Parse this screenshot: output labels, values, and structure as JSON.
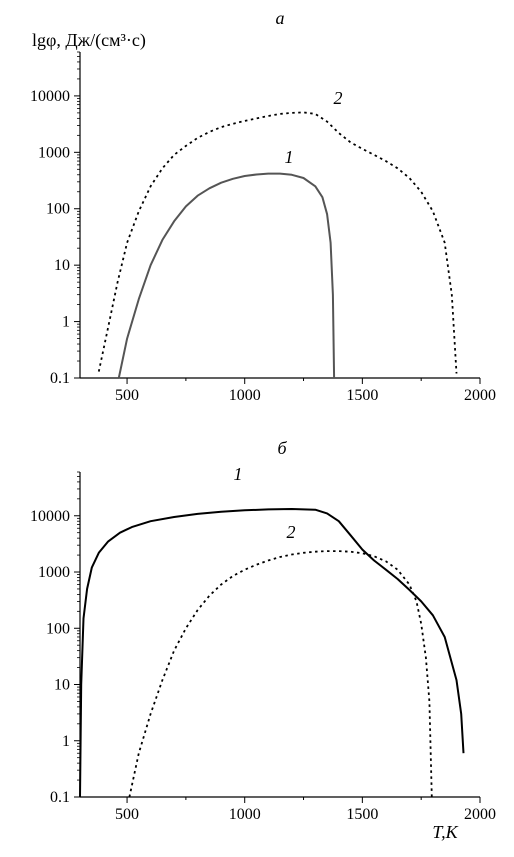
{
  "chart_data": [
    {
      "type": "line",
      "panel_label": "а",
      "ylabel": "lgφ, Дж/(см³·с)",
      "xlabel": "",
      "xlim": [
        300,
        2000
      ],
      "ylim": [
        0.1,
        60000
      ],
      "y_scale": "log",
      "x_ticks": [
        500,
        1000,
        1500,
        2000
      ],
      "y_ticks": [
        0.1,
        1,
        10,
        100,
        1000,
        10000
      ],
      "y_tick_labels": [
        "0.1",
        "1",
        "10",
        "100",
        "1000",
        "10000"
      ],
      "grid": false,
      "series": [
        {
          "name": "1",
          "style": "solid",
          "color": "#555555",
          "points": [
            [
              465,
              0.1
            ],
            [
              500,
              0.5
            ],
            [
              550,
              2.5
            ],
            [
              600,
              10
            ],
            [
              650,
              28
            ],
            [
              700,
              60
            ],
            [
              750,
              110
            ],
            [
              800,
              170
            ],
            [
              850,
              230
            ],
            [
              900,
              290
            ],
            [
              950,
              340
            ],
            [
              1000,
              380
            ],
            [
              1050,
              405
            ],
            [
              1100,
              420
            ],
            [
              1150,
              420
            ],
            [
              1200,
              400
            ],
            [
              1250,
              350
            ],
            [
              1300,
              250
            ],
            [
              1330,
              160
            ],
            [
              1350,
              80
            ],
            [
              1365,
              25
            ],
            [
              1375,
              3
            ],
            [
              1380,
              0.1
            ]
          ]
        },
        {
          "name": "2",
          "style": "dotted",
          "color": "#000000",
          "points": [
            [
              380,
              0.13
            ],
            [
              420,
              0.8
            ],
            [
              460,
              5
            ],
            [
              500,
              25
            ],
            [
              550,
              90
            ],
            [
              600,
              250
            ],
            [
              650,
              520
            ],
            [
              700,
              900
            ],
            [
              750,
              1300
            ],
            [
              800,
              1800
            ],
            [
              850,
              2300
            ],
            [
              900,
              2800
            ],
            [
              950,
              3200
            ],
            [
              1000,
              3600
            ],
            [
              1050,
              4000
            ],
            [
              1100,
              4400
            ],
            [
              1150,
              4800
            ],
            [
              1200,
              5000
            ],
            [
              1250,
              5100
            ],
            [
              1300,
              4800
            ],
            [
              1350,
              3500
            ],
            [
              1400,
              2200
            ],
            [
              1450,
              1500
            ],
            [
              1500,
              1150
            ],
            [
              1550,
              900
            ],
            [
              1600,
              700
            ],
            [
              1650,
              520
            ],
            [
              1700,
              350
            ],
            [
              1750,
              200
            ],
            [
              1800,
              90
            ],
            [
              1850,
              25
            ],
            [
              1880,
              3
            ],
            [
              1900,
              0.12
            ]
          ]
        }
      ]
    },
    {
      "type": "line",
      "panel_label": "б",
      "ylabel": "",
      "xlabel": "T,K",
      "xlim": [
        300,
        2000
      ],
      "ylim": [
        0.1,
        60000
      ],
      "y_scale": "log",
      "x_ticks": [
        500,
        1000,
        1500,
        2000
      ],
      "y_ticks": [
        0.1,
        1,
        10,
        100,
        1000,
        10000
      ],
      "y_tick_labels": [
        "0.1",
        "1",
        "10",
        "100",
        "1000",
        "10000"
      ],
      "grid": false,
      "series": [
        {
          "name": "1",
          "style": "solid",
          "color": "#000000",
          "points": [
            [
              300,
              0.1
            ],
            [
              305,
              10
            ],
            [
              315,
              150
            ],
            [
              330,
              500
            ],
            [
              350,
              1200
            ],
            [
              380,
              2200
            ],
            [
              420,
              3500
            ],
            [
              470,
              5000
            ],
            [
              520,
              6300
            ],
            [
              600,
              8000
            ],
            [
              700,
              9500
            ],
            [
              800,
              10800
            ],
            [
              900,
              11800
            ],
            [
              1000,
              12500
            ],
            [
              1100,
              13000
            ],
            [
              1200,
              13200
            ],
            [
              1300,
              12800
            ],
            [
              1350,
              11000
            ],
            [
              1400,
              8000
            ],
            [
              1450,
              4500
            ],
            [
              1500,
              2500
            ],
            [
              1550,
              1600
            ],
            [
              1600,
              1100
            ],
            [
              1650,
              750
            ],
            [
              1700,
              480
            ],
            [
              1750,
              300
            ],
            [
              1800,
              170
            ],
            [
              1850,
              70
            ],
            [
              1900,
              12
            ],
            [
              1920,
              3
            ],
            [
              1930,
              0.6
            ]
          ]
        },
        {
          "name": "2",
          "style": "dotted",
          "color": "#000000",
          "points": [
            [
              510,
              0.1
            ],
            [
              550,
              0.6
            ],
            [
              600,
              3
            ],
            [
              650,
              12
            ],
            [
              700,
              40
            ],
            [
              750,
              100
            ],
            [
              800,
              210
            ],
            [
              850,
              380
            ],
            [
              900,
              600
            ],
            [
              950,
              850
            ],
            [
              1000,
              1100
            ],
            [
              1050,
              1350
            ],
            [
              1100,
              1600
            ],
            [
              1150,
              1850
            ],
            [
              1200,
              2050
            ],
            [
              1250,
              2200
            ],
            [
              1300,
              2300
            ],
            [
              1350,
              2350
            ],
            [
              1400,
              2350
            ],
            [
              1450,
              2300
            ],
            [
              1500,
              2150
            ],
            [
              1550,
              1900
            ],
            [
              1600,
              1550
            ],
            [
              1650,
              1100
            ],
            [
              1700,
              600
            ],
            [
              1730,
              300
            ],
            [
              1750,
              120
            ],
            [
              1770,
              30
            ],
            [
              1785,
              5
            ],
            [
              1795,
              0.1
            ]
          ]
        }
      ]
    }
  ]
}
